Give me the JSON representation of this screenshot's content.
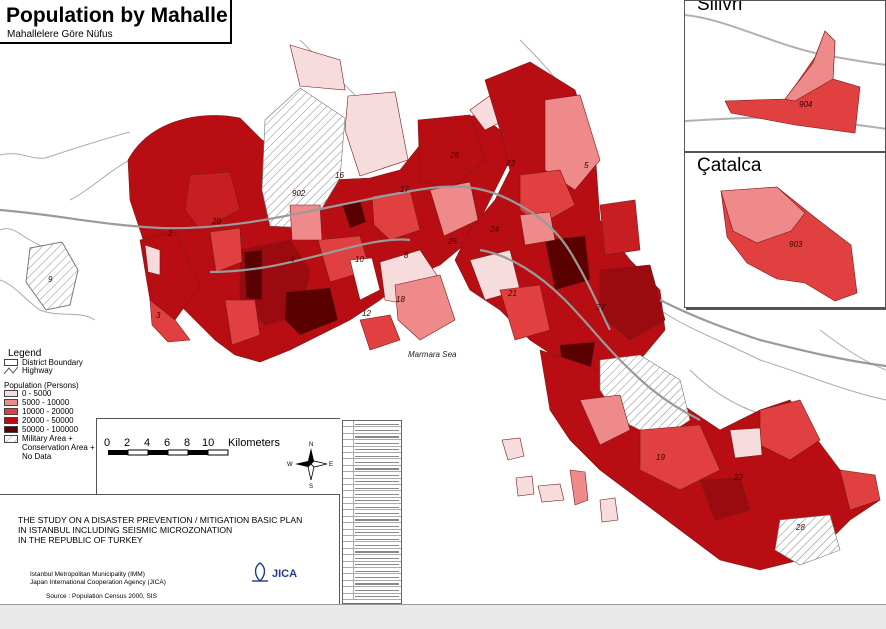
{
  "title": {
    "main": "Population by Mahalle",
    "sub": "Mahallelere Göre Nüfus"
  },
  "insets": {
    "silivri": {
      "label": "Silivri",
      "code": "904"
    },
    "catalca": {
      "label": "Çatalca",
      "code": "903"
    }
  },
  "sea_label": "Marmara Sea",
  "district_codes": [
    "2",
    "20",
    "902",
    "9",
    "3",
    "16",
    "10",
    "12",
    "26",
    "23",
    "5",
    "17",
    "25",
    "21",
    "27",
    "24",
    "19",
    "22",
    "28",
    "4",
    "18",
    "8"
  ],
  "legend": {
    "title": "Legend",
    "district_boundary": "District Boundary",
    "highway": "Highway",
    "population_title": "Population (Persons)",
    "classes": [
      {
        "label": "0 - 5000",
        "color": "#f6dcdc"
      },
      {
        "label": "5000 - 10000",
        "color": "#ee8a8a"
      },
      {
        "label": "10000 - 20000",
        "color": "#e04040"
      },
      {
        "label": "20000 - 50000",
        "color": "#b80d12"
      },
      {
        "label": "50000 - 100000",
        "color": "#5a0000"
      }
    ],
    "military_line1": "Military Area +",
    "military_line2": "Conservation Area +",
    "military_line3": "No Data"
  },
  "scale": {
    "ticks": [
      "0",
      "2",
      "4",
      "6",
      "8",
      "10"
    ],
    "unit": "Kilometers"
  },
  "compass": {
    "n": "N",
    "s": "S",
    "e": "E",
    "w": "W"
  },
  "study": {
    "line1": "THE STUDY ON A DISASTER PREVENTION / MITIGATION BASIC PLAN",
    "line2": "IN ISTANBUL INCLUDING SEISMIC MICROZONATION",
    "line3": "IN THE REPUBLIC OF TURKEY",
    "org1": "Istanbul Metropolitan Municipality (IMM)",
    "org2": "Japan International Cooperation Agency (JICA)",
    "source": "Source : Population Census 2000, SIS",
    "logo_text": "JICA"
  },
  "colors": {
    "sea": "#ffffff",
    "boundary": "#7a7a7a",
    "highway": "#9a9a9a",
    "hatch": "#9a9a9a"
  }
}
